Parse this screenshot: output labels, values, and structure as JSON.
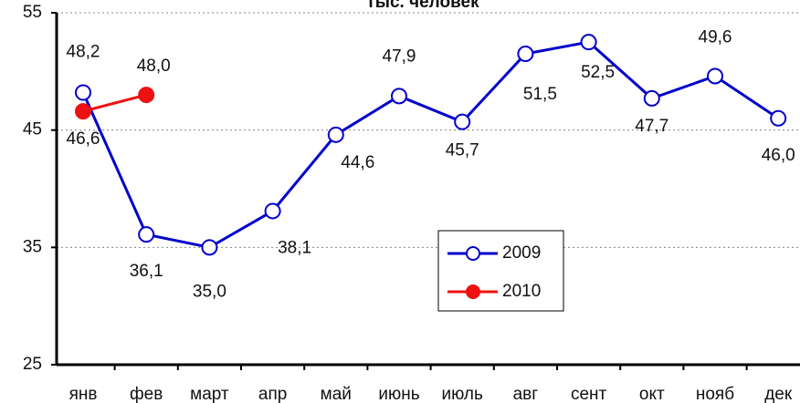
{
  "chart_data": {
    "type": "line",
    "title": "тыс. человек",
    "categories": [
      "янв",
      "фев",
      "март",
      "апр",
      "май",
      "июнь",
      "июль",
      "авг",
      "сент",
      "окт",
      "нояб",
      "дек"
    ],
    "series": [
      {
        "name": "2009",
        "color": "#0000cc",
        "values": [
          48.2,
          36.1,
          35.0,
          38.1,
          44.6,
          47.9,
          45.7,
          51.5,
          52.5,
          47.7,
          49.6,
          46.0
        ],
        "value_labels": [
          "48,2",
          "36,1",
          "35,0",
          "38,1",
          "44,6",
          "47,9",
          "45,7",
          "51,5",
          "52,5",
          "47,7",
          "49,6",
          "46,0"
        ]
      },
      {
        "name": "2010",
        "color": "#ee1111",
        "values": [
          46.6,
          48.0,
          null,
          null,
          null,
          null,
          null,
          null,
          null,
          null,
          null,
          null
        ],
        "value_labels": [
          "46,6",
          "48,0",
          null,
          null,
          null,
          null,
          null,
          null,
          null,
          null,
          null,
          null
        ]
      }
    ],
    "ylim": [
      25,
      55
    ],
    "yticks": [
      25,
      35,
      45,
      55
    ],
    "grid": true
  }
}
